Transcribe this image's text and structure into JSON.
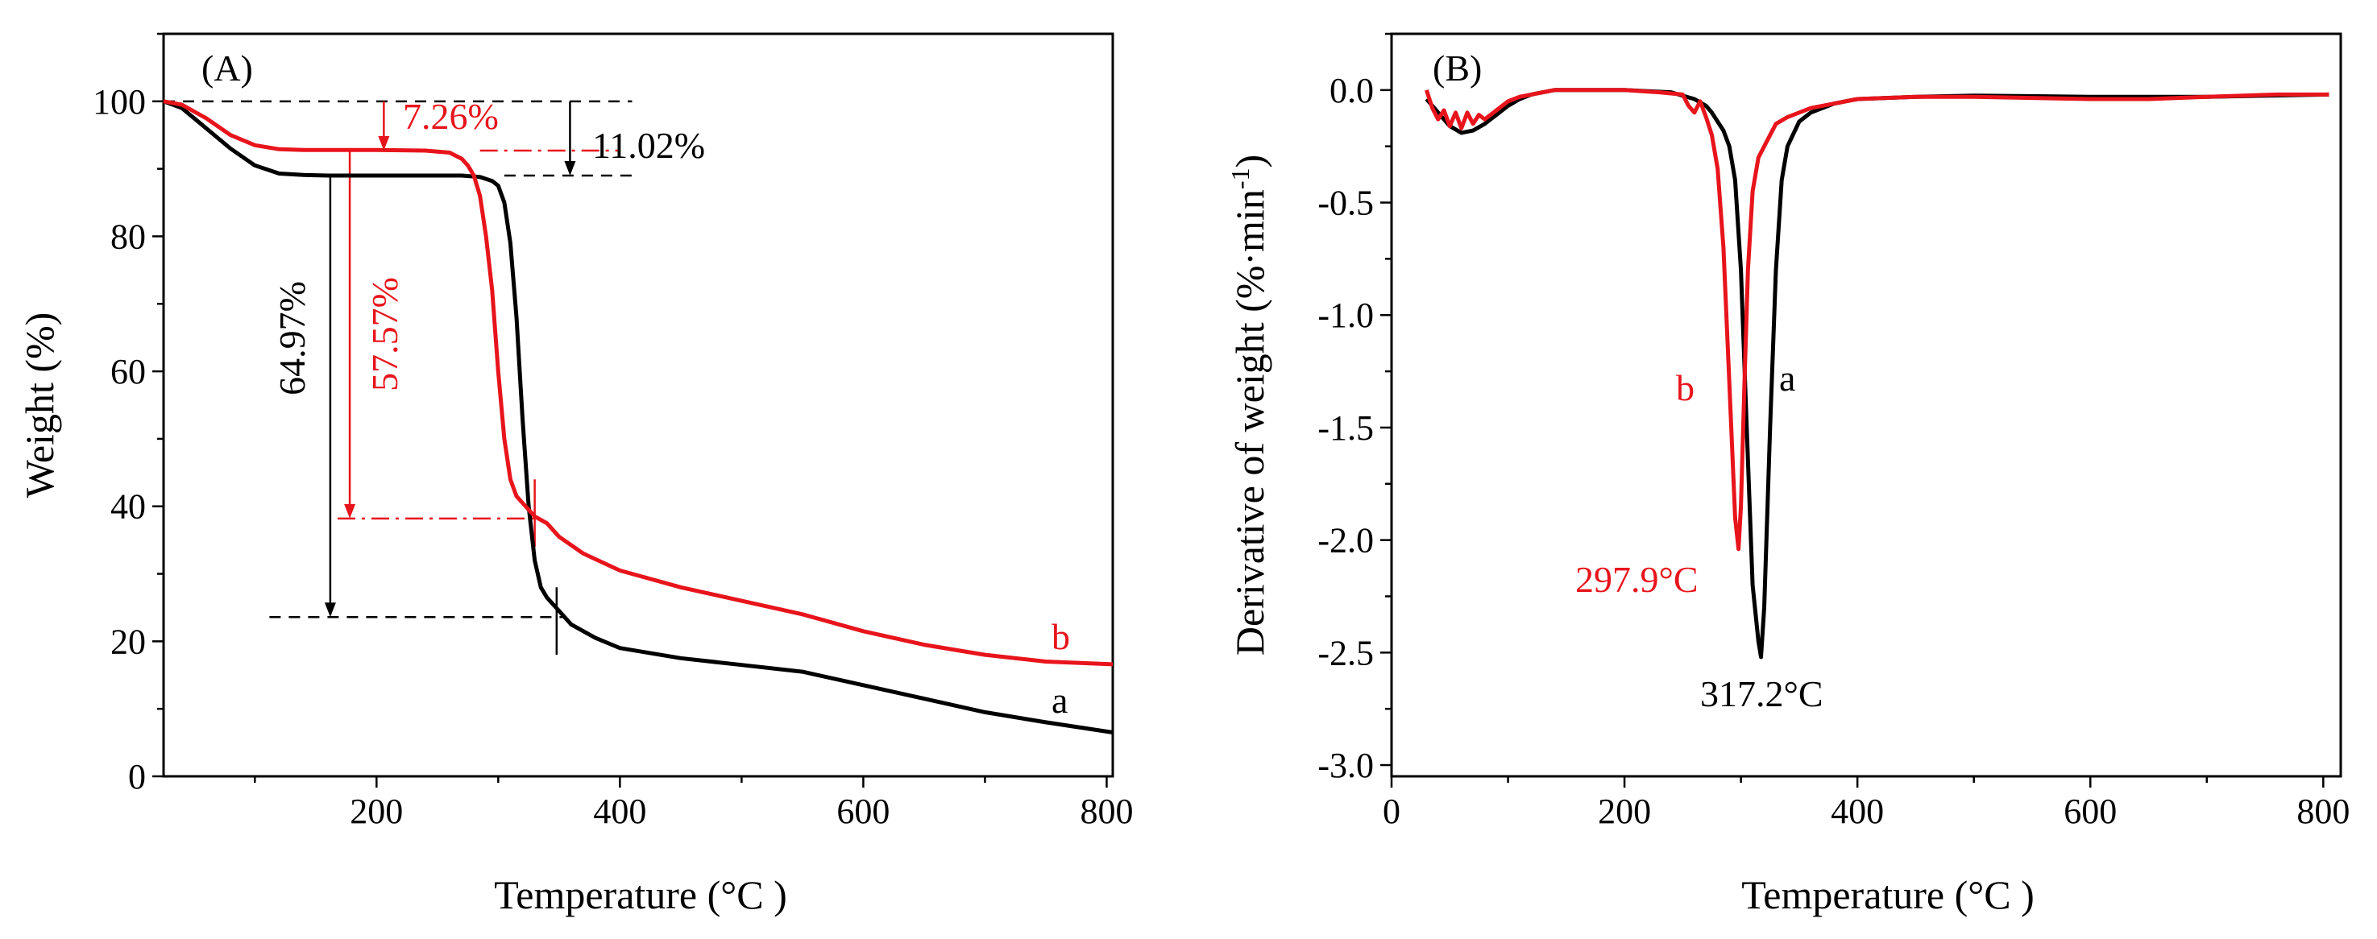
{
  "chart_data": [
    {
      "type": "line",
      "panel_label": "(A)",
      "xlabel": "Temperature (°C )",
      "ylabel": "Weight (%)",
      "xlim": [
        25,
        805
      ],
      "ylim": [
        0,
        110
      ],
      "xticks": [
        200,
        400,
        600,
        800
      ],
      "yticks": [
        0,
        20,
        40,
        60,
        80,
        100
      ],
      "colors": {
        "a": "#000000",
        "b": "#e8141c"
      },
      "series": [
        {
          "name": "a",
          "color": "#000000",
          "x": [
            25,
            40,
            60,
            80,
            100,
            120,
            140,
            160,
            200,
            240,
            270,
            285,
            295,
            300,
            305,
            310,
            315,
            320,
            325,
            330,
            335,
            340,
            350,
            360,
            380,
            400,
            450,
            500,
            550,
            600,
            650,
            700,
            750,
            805
          ],
          "y": [
            100,
            99,
            96,
            93,
            90.5,
            89.3,
            89.1,
            89.0,
            89.0,
            89.0,
            89.0,
            88.8,
            88.2,
            87.5,
            85,
            79,
            68,
            53,
            40,
            32,
            28,
            26.5,
            24.5,
            22.5,
            20.5,
            19,
            17.5,
            16.5,
            15.5,
            13.5,
            11.5,
            9.5,
            8,
            6.5
          ]
        },
        {
          "name": "b",
          "color": "#e8141c",
          "x": [
            25,
            40,
            60,
            80,
            100,
            120,
            140,
            160,
            200,
            240,
            260,
            270,
            275,
            280,
            285,
            290,
            295,
            300,
            305,
            310,
            315,
            320,
            325,
            330,
            340,
            350,
            370,
            400,
            450,
            500,
            550,
            600,
            650,
            700,
            750,
            805
          ],
          "y": [
            100,
            99.5,
            97.5,
            95,
            93.5,
            92.9,
            92.8,
            92.8,
            92.8,
            92.7,
            92.4,
            91.5,
            90.5,
            89,
            86,
            80,
            72,
            60,
            50,
            44,
            41.5,
            40.5,
            39.5,
            38.5,
            37.5,
            35.5,
            33,
            30.5,
            28,
            26,
            24,
            21.5,
            19.5,
            18,
            17,
            16.6
          ]
        }
      ],
      "annotations": {
        "a_step1_loss": "11.02%",
        "b_step1_loss": "7.26%",
        "a_step2_loss": "64.97%",
        "b_step2_loss": "57.57%",
        "curve_label_a": "a",
        "curve_label_b": "b"
      }
    },
    {
      "type": "line",
      "panel_label": "(B)",
      "xlabel": "Temperature (°C )",
      "ylabel_main": "Derivative of weight (%·min",
      "ylabel_sup": "-1",
      "ylabel_close": ")",
      "xlim": [
        0,
        815
      ],
      "ylim": [
        -3.05,
        0.25
      ],
      "xticks": [
        0,
        200,
        400,
        600,
        800
      ],
      "yticks": [
        0.0,
        -0.5,
        -1.0,
        -1.5,
        -2.0,
        -2.5,
        -3.0
      ],
      "ytick_labels": [
        "0.0",
        "-0.5",
        "-1.0",
        "-1.5",
        "-2.0",
        "-2.5",
        "-3.0"
      ],
      "series": [
        {
          "name": "a",
          "color": "#000000",
          "x": [
            30,
            40,
            50,
            60,
            70,
            80,
            90,
            100,
            110,
            120,
            130,
            140,
            200,
            240,
            260,
            270,
            275,
            280,
            285,
            290,
            295,
            300,
            305,
            310,
            315,
            317.2,
            320,
            325,
            330,
            335,
            340,
            350,
            360,
            380,
            400,
            450,
            500,
            600,
            700,
            805
          ],
          "y": [
            -0.04,
            -0.1,
            -0.16,
            -0.19,
            -0.18,
            -0.15,
            -0.11,
            -0.07,
            -0.04,
            -0.02,
            -0.01,
            0.0,
            0.0,
            -0.01,
            -0.04,
            -0.07,
            -0.1,
            -0.14,
            -0.18,
            -0.25,
            -0.4,
            -0.8,
            -1.5,
            -2.2,
            -2.45,
            -2.52,
            -2.3,
            -1.5,
            -0.8,
            -0.4,
            -0.25,
            -0.14,
            -0.1,
            -0.06,
            -0.04,
            -0.03,
            -0.025,
            -0.03,
            -0.03,
            -0.02
          ]
        },
        {
          "name": "b",
          "color": "#e8141c",
          "x": [
            30,
            35,
            40,
            45,
            50,
            55,
            60,
            65,
            70,
            75,
            80,
            90,
            100,
            110,
            120,
            130,
            140,
            200,
            230,
            250,
            255,
            260,
            265,
            270,
            275,
            280,
            285,
            290,
            295,
            297.9,
            300,
            303,
            306,
            310,
            315,
            320,
            330,
            340,
            350,
            360,
            380,
            400,
            450,
            500,
            600,
            650,
            700,
            760,
            805
          ],
          "y": [
            0.0,
            -0.08,
            -0.13,
            -0.09,
            -0.16,
            -0.1,
            -0.17,
            -0.1,
            -0.15,
            -0.11,
            -0.13,
            -0.09,
            -0.05,
            -0.03,
            -0.02,
            -0.01,
            0.0,
            0.0,
            -0.01,
            -0.02,
            -0.07,
            -0.1,
            -0.05,
            -0.12,
            -0.2,
            -0.35,
            -0.7,
            -1.3,
            -1.9,
            -2.04,
            -1.85,
            -1.3,
            -0.8,
            -0.45,
            -0.3,
            -0.25,
            -0.15,
            -0.12,
            -0.1,
            -0.08,
            -0.06,
            -0.04,
            -0.03,
            -0.03,
            -0.04,
            -0.04,
            -0.03,
            -0.02,
            -0.02
          ]
        }
      ],
      "annotations": {
        "peak_a": "317.2°C",
        "peak_b": "297.9°C",
        "curve_label_a": "a",
        "curve_label_b": "b"
      }
    }
  ]
}
